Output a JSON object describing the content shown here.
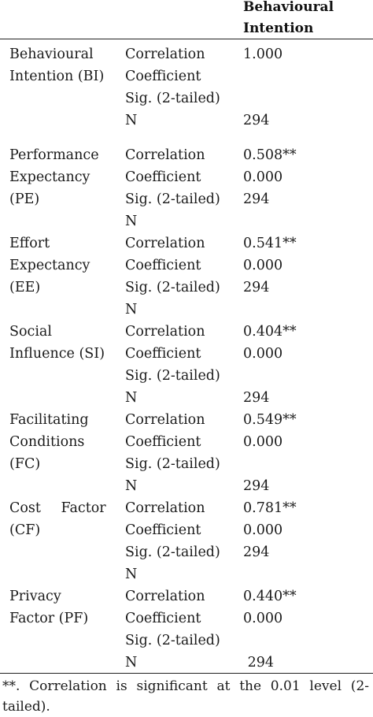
{
  "header": {
    "column_title_line1": "Behavioural",
    "column_title_line2": "Intention"
  },
  "rows": [
    {
      "label": [
        "Behavioural",
        "Intention (BI)"
      ],
      "stats": [
        "Correlation",
        "Coefficient",
        "Sig. (2-tailed)",
        "N"
      ],
      "values": [
        "1.000",
        "",
        "",
        "294"
      ]
    },
    {
      "label": [
        "Performance",
        "Expectancy",
        "(PE)"
      ],
      "stats": [
        "Correlation",
        "Coefficient",
        "Sig. (2-tailed)",
        "N"
      ],
      "values": [
        "0.508**",
        "0.000",
        "294"
      ]
    },
    {
      "label": [
        "Effort",
        "Expectancy",
        "(EE)"
      ],
      "stats": [
        "Correlation",
        "Coefficient",
        "Sig. (2-tailed)",
        "N"
      ],
      "values": [
        "0.541**",
        "0.000",
        "294"
      ]
    },
    {
      "label": [
        "Social",
        "Influence (SI)"
      ],
      "stats": [
        "Correlation",
        "Coefficient",
        "Sig. (2-tailed)",
        "N"
      ],
      "values": [
        "0.404**",
        "0.000",
        "",
        "294"
      ]
    },
    {
      "label": [
        "Facilitating",
        "Conditions",
        "(FC)"
      ],
      "stats": [
        "Correlation",
        "Coefficient",
        "Sig. (2-tailed)",
        "N"
      ],
      "values": [
        "0.549**",
        "0.000",
        "",
        "294"
      ]
    },
    {
      "label": [
        "Cost Factor",
        "(CF)"
      ],
      "stats": [
        "Correlation",
        "Coefficient",
        "Sig. (2-tailed)",
        "N"
      ],
      "values": [
        "0.781**",
        "0.000",
        "294"
      ]
    },
    {
      "label": [
        "Privacy",
        "Factor (PF)"
      ],
      "stats": [
        "Correlation",
        "Coefficient",
        "Sig. (2-tailed)",
        "N"
      ],
      "values": [
        "0.440**",
        "0.000",
        "",
        " 294"
      ]
    }
  ],
  "footnote": "**. Correlation is significant at the 0.01 level (2-tailed)."
}
